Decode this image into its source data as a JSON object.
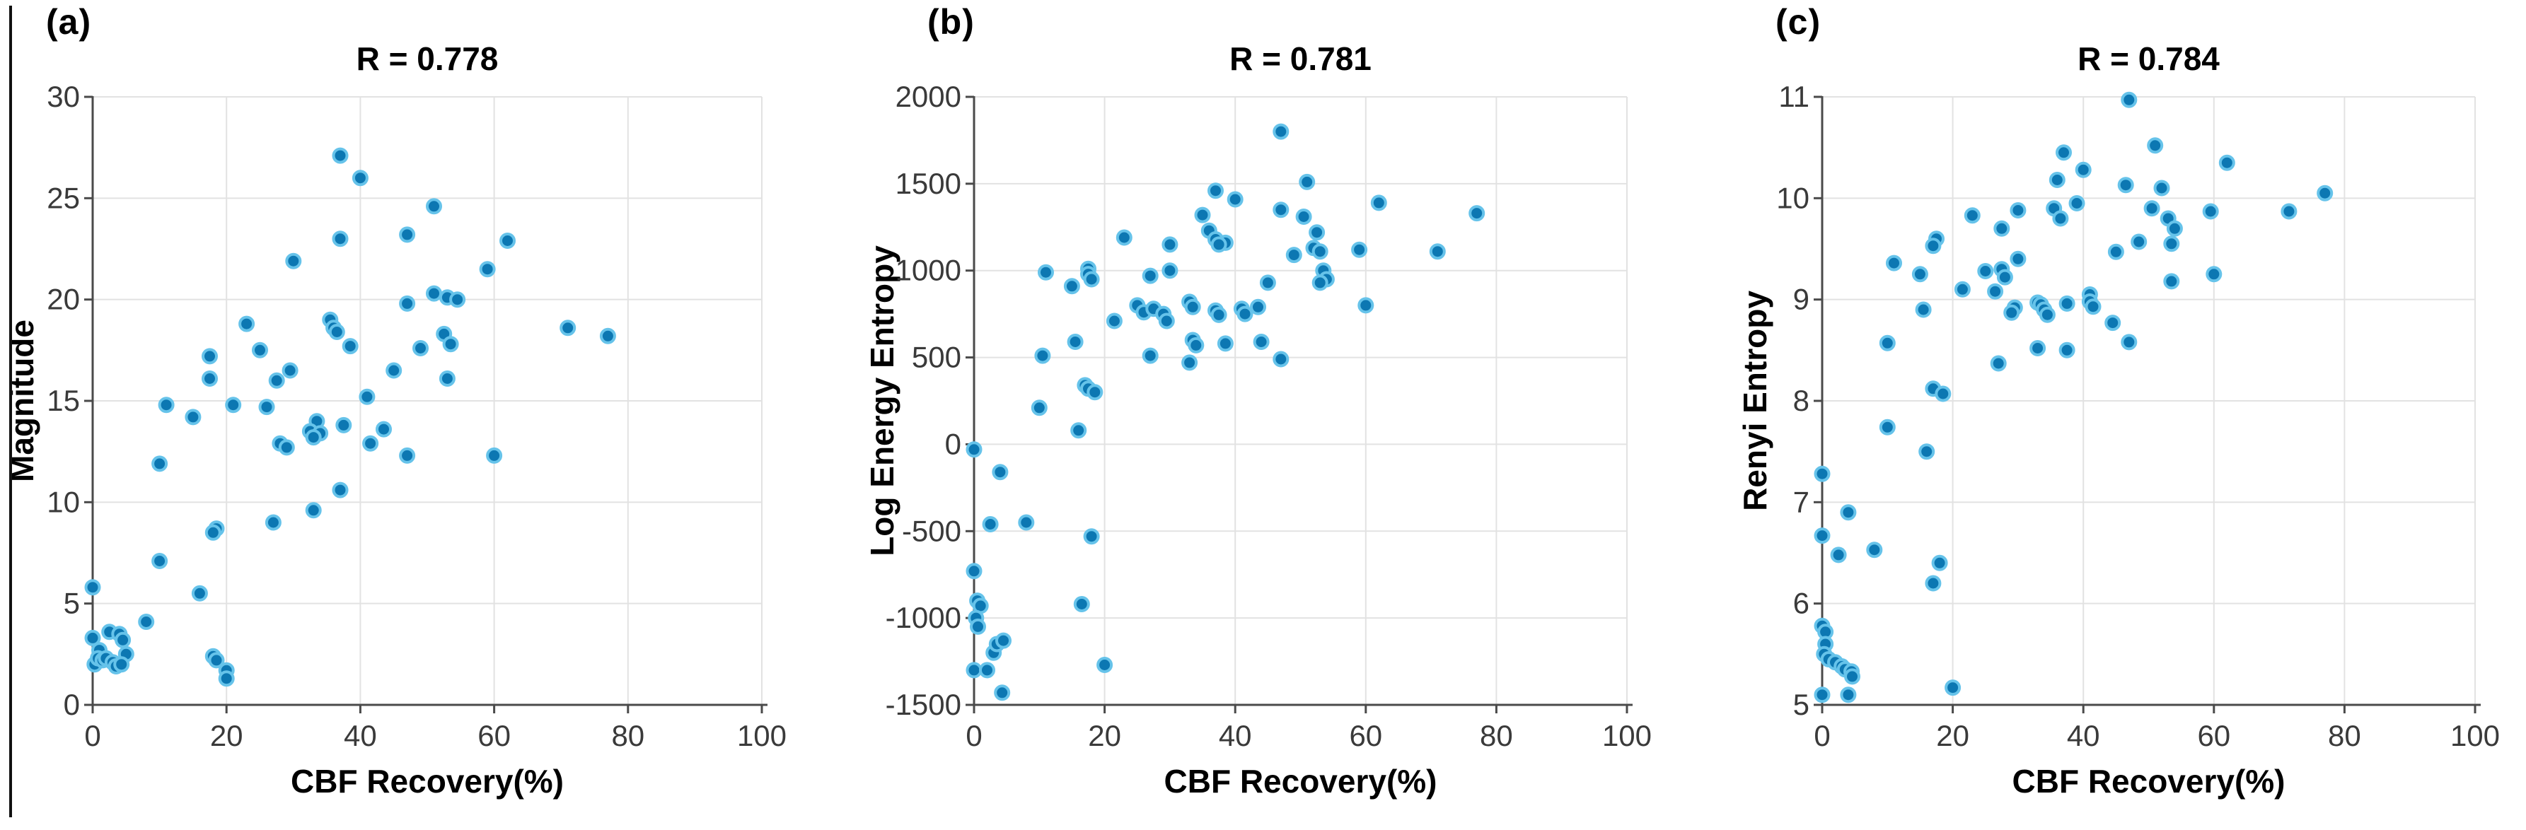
{
  "page": {
    "background": "#ffffff",
    "left_rule_color": "#111111"
  },
  "styles": {
    "marker_fill": "#0c77b2",
    "marker_edge": "#66c3ea",
    "grid_color": "#e2e2e2",
    "axis_color": "#4a4a4a",
    "tick_label_color": "#3a3a3a",
    "text_color": "#000000"
  },
  "chart_data": [
    {
      "type": "scatter",
      "panel_label": "(a)",
      "title": "R = 0.778",
      "xlabel": "CBF Recovery(%)",
      "ylabel": "Magnitude",
      "xlim": [
        0,
        100
      ],
      "ylim": [
        0,
        30
      ],
      "xticks": [
        0,
        20,
        40,
        60,
        80,
        100
      ],
      "yticks": [
        0,
        5,
        10,
        15,
        20,
        25,
        30
      ],
      "grid": true,
      "legend": null,
      "x": [
        37,
        40,
        51,
        47,
        37,
        62,
        30,
        59,
        51,
        53,
        54.5,
        47,
        35.5,
        23,
        36,
        71,
        36.5,
        52.5,
        77,
        38.5,
        53.5,
        49,
        25,
        17.5,
        29.5,
        45,
        17.5,
        27.5,
        53,
        41,
        11,
        21,
        26,
        15,
        37.5,
        33.5,
        43.5,
        32.5,
        34,
        33,
        41.5,
        28,
        29,
        47,
        60,
        10,
        37,
        33,
        27,
        18.5,
        18,
        10,
        0,
        16,
        8,
        2.5,
        4,
        0,
        4.5,
        1,
        5,
        18,
        18.5,
        0.3,
        0.8,
        1.5,
        2,
        3,
        3.5,
        4.3,
        20,
        20
      ],
      "y": [
        27.1,
        26.0,
        24.6,
        23.2,
        23.0,
        22.9,
        21.9,
        21.5,
        20.3,
        20.1,
        20.0,
        19.8,
        19.0,
        18.8,
        18.6,
        18.6,
        18.4,
        18.3,
        18.2,
        17.7,
        17.8,
        17.6,
        17.5,
        17.2,
        16.5,
        16.5,
        16.1,
        16.0,
        16.1,
        15.2,
        14.8,
        14.8,
        14.7,
        14.2,
        13.8,
        14.0,
        13.6,
        13.5,
        13.4,
        13.2,
        12.9,
        12.9,
        12.7,
        12.3,
        12.3,
        11.9,
        10.6,
        9.6,
        9.0,
        8.7,
        8.5,
        7.1,
        5.8,
        5.5,
        4.1,
        3.6,
        3.5,
        3.3,
        3.2,
        2.7,
        2.5,
        2.4,
        2.2,
        2.0,
        2.3,
        2.2,
        2.3,
        2.1,
        1.9,
        2.0,
        1.7,
        1.3
      ]
    },
    {
      "type": "scatter",
      "panel_label": "(b)",
      "title": "R = 0.781",
      "xlabel": "CBF Recovery(%)",
      "ylabel": "Log Energy Entropy",
      "xlim": [
        0,
        100
      ],
      "ylim": [
        -1500,
        2000
      ],
      "xticks": [
        0,
        20,
        40,
        60,
        80,
        100
      ],
      "yticks": [
        -1500,
        -1000,
        -500,
        0,
        500,
        1000,
        1500,
        2000
      ],
      "grid": true,
      "legend": null,
      "x": [
        47,
        51,
        37,
        40,
        62,
        47,
        35,
        50.5,
        77,
        36,
        38.5,
        52.5,
        23,
        37,
        37.5,
        30,
        52,
        59,
        53,
        71,
        49,
        11,
        17.5,
        17.5,
        18,
        15,
        27,
        30,
        53.5,
        54,
        53,
        45,
        33,
        33.5,
        25,
        26,
        27.5,
        29,
        29.5,
        41,
        41.5,
        37,
        37.5,
        43.5,
        60,
        21.5,
        33.5,
        34,
        38.5,
        44,
        15.5,
        10.5,
        27,
        33,
        47,
        17,
        17.5,
        18.5,
        10,
        16,
        0,
        4,
        2.5,
        8,
        18,
        0,
        0.5,
        1,
        0.3,
        0.6,
        16.5,
        3,
        3.5,
        4.5,
        0,
        2,
        4.3,
        20
      ],
      "y": [
        1800,
        1510,
        1460,
        1410,
        1390,
        1350,
        1320,
        1310,
        1330,
        1230,
        1160,
        1220,
        1190,
        1180,
        1150,
        1150,
        1130,
        1120,
        1110,
        1110,
        1090,
        990,
        1010,
        980,
        950,
        910,
        970,
        1000,
        1000,
        950,
        930,
        930,
        820,
        790,
        800,
        760,
        780,
        750,
        710,
        780,
        750,
        770,
        745,
        790,
        800,
        710,
        600,
        570,
        580,
        590,
        590,
        510,
        510,
        470,
        490,
        340,
        320,
        300,
        210,
        80,
        -30,
        -160,
        -460,
        -450,
        -530,
        -730,
        -900,
        -930,
        -1000,
        -1050,
        -920,
        -1200,
        -1150,
        -1130,
        -1300,
        -1300,
        -1430,
        -1270
      ]
    },
    {
      "type": "scatter",
      "panel_label": "(c)",
      "title": "R = 0.784",
      "xlabel": "CBF Recovery(%)",
      "ylabel": "Renyi Entropy",
      "xlim": [
        0,
        100
      ],
      "ylim": [
        5,
        11
      ],
      "xticks": [
        0,
        20,
        40,
        60,
        80,
        100
      ],
      "yticks": [
        5,
        6,
        7,
        8,
        9,
        10,
        11
      ],
      "grid": true,
      "legend": null,
      "x": [
        47,
        51,
        37,
        62,
        40,
        36,
        46.5,
        52,
        77,
        39,
        35.5,
        50.5,
        30,
        59.5,
        71.5,
        23,
        36.5,
        53,
        27.5,
        54,
        17.5,
        17,
        48.5,
        53.5,
        45,
        30,
        11,
        27.5,
        15,
        25,
        28,
        21.5,
        26.5,
        41,
        33,
        33.5,
        37.5,
        41,
        34,
        41.5,
        15.5,
        29.5,
        29,
        34.5,
        53.5,
        60,
        44.5,
        47,
        10,
        33,
        37.5,
        27,
        17,
        18.5,
        10,
        16,
        0,
        4,
        0,
        8,
        2.5,
        18,
        17,
        0,
        0.5,
        0.5,
        0.3,
        1,
        2,
        3,
        3.5,
        4.5,
        4.6,
        20,
        0,
        4
      ],
      "y": [
        10.97,
        10.52,
        10.45,
        10.35,
        10.28,
        10.18,
        10.13,
        10.1,
        10.05,
        9.95,
        9.9,
        9.9,
        9.88,
        9.87,
        9.87,
        9.83,
        9.8,
        9.8,
        9.7,
        9.7,
        9.6,
        9.53,
        9.57,
        9.55,
        9.47,
        9.4,
        9.36,
        9.3,
        9.25,
        9.28,
        9.22,
        9.1,
        9.08,
        9.05,
        8.97,
        8.95,
        8.96,
        8.98,
        8.9,
        8.93,
        8.9,
        8.92,
        8.87,
        8.85,
        9.18,
        9.25,
        8.77,
        8.58,
        8.57,
        8.52,
        8.5,
        8.37,
        8.12,
        8.07,
        7.74,
        7.5,
        7.28,
        6.9,
        6.67,
        6.53,
        6.48,
        6.4,
        6.2,
        5.78,
        5.72,
        5.6,
        5.5,
        5.45,
        5.42,
        5.38,
        5.35,
        5.33,
        5.28,
        5.17,
        5.1,
        5.1
      ]
    }
  ]
}
